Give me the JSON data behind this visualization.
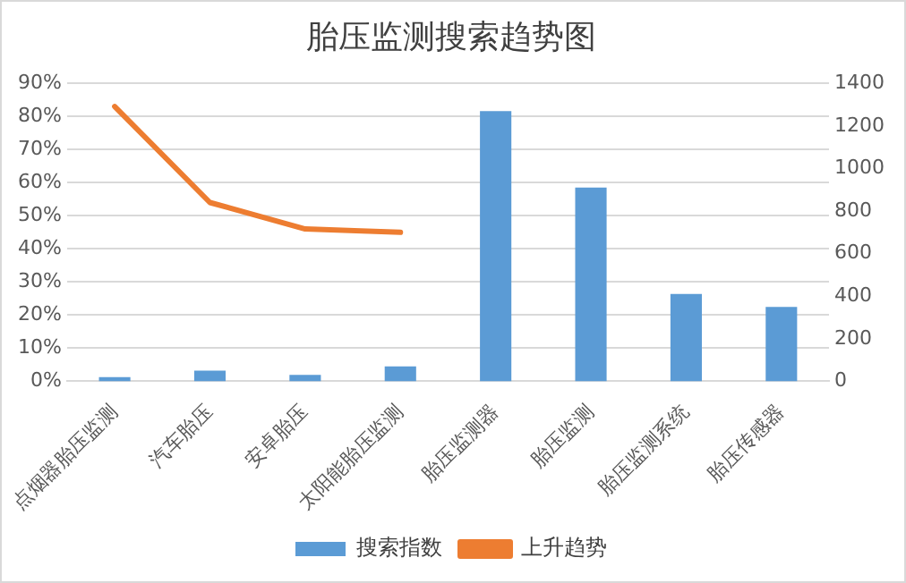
{
  "chart_data": {
    "type": "bar",
    "title": "胎压监测搜索趋势图",
    "categories": [
      "点烟器胎压监测",
      "汽车胎压",
      "安卓胎压",
      "太阳能胎压监测",
      "胎压监测器",
      "胎压监测",
      "胎压监测系统",
      "胎压传感器"
    ],
    "series": [
      {
        "name": "搜索指数",
        "axis": "y2",
        "color": "#5b9bd5",
        "values": [
          20,
          50,
          30,
          70,
          1270,
          910,
          410,
          350
        ]
      },
      {
        "name": "上升趋势",
        "type": "line",
        "axis": "y",
        "color": "#ed7d31",
        "values": [
          83,
          54,
          46,
          45,
          null,
          null,
          null,
          null
        ]
      }
    ],
    "ylim": [
      0,
      90
    ],
    "yticks": [
      {
        "value": 0,
        "label": "0%"
      },
      {
        "value": 10,
        "label": "10%"
      },
      {
        "value": 20,
        "label": "20%"
      },
      {
        "value": 30,
        "label": "30%"
      },
      {
        "value": 40,
        "label": "40%"
      },
      {
        "value": 50,
        "label": "50%"
      },
      {
        "value": 60,
        "label": "60%"
      },
      {
        "value": 70,
        "label": "70%"
      },
      {
        "value": 80,
        "label": "80%"
      },
      {
        "value": 90,
        "label": "90%"
      }
    ],
    "y2lim": [
      0,
      1400
    ],
    "y2ticks": [
      0,
      200,
      400,
      600,
      800,
      1000,
      1200,
      1400
    ],
    "grid": "y",
    "legend": "bottom",
    "marker": "none",
    "line_style": "solid"
  }
}
